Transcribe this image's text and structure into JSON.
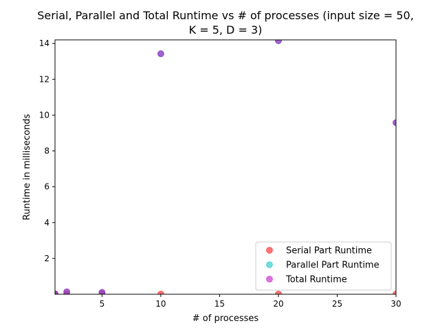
{
  "chart_data": {
    "type": "scatter",
    "title_line1": "Serial, Parallel and Total Runtime vs # of processes (input size = 50,",
    "title_line2": "K = 5, D = 3)",
    "xlabel": "# of processes",
    "ylabel": "Runtime in milliseconds",
    "xlim": [
      1,
      30
    ],
    "ylim": [
      0,
      14.2
    ],
    "xticks": [
      5,
      10,
      15,
      20,
      25,
      30
    ],
    "yticks": [
      2,
      4,
      6,
      8,
      10,
      12,
      14
    ],
    "grid": false,
    "legend_position": "lower right",
    "series": [
      {
        "name": "Serial Part Runtime",
        "color": "#ff0000",
        "points": [
          [
            1,
            0.01
          ],
          [
            2,
            0.01
          ],
          [
            5,
            0.01
          ],
          [
            10,
            0.01
          ],
          [
            20,
            0.01
          ],
          [
            30,
            0.01
          ]
        ]
      },
      {
        "name": "Parallel Part Runtime",
        "color": "#00bfbf",
        "points": [
          [
            1,
            0.02
          ],
          [
            2,
            0.13
          ],
          [
            5,
            0.1
          ],
          [
            10,
            13.42
          ],
          [
            20,
            14.15
          ],
          [
            30,
            9.57
          ]
        ]
      },
      {
        "name": "Total Runtime",
        "color": "#bf00bf",
        "points": [
          [
            1,
            0.03
          ],
          [
            2,
            0.14
          ],
          [
            5,
            0.11
          ],
          [
            10,
            13.43
          ],
          [
            20,
            14.16
          ],
          [
            30,
            9.58
          ]
        ]
      }
    ]
  }
}
